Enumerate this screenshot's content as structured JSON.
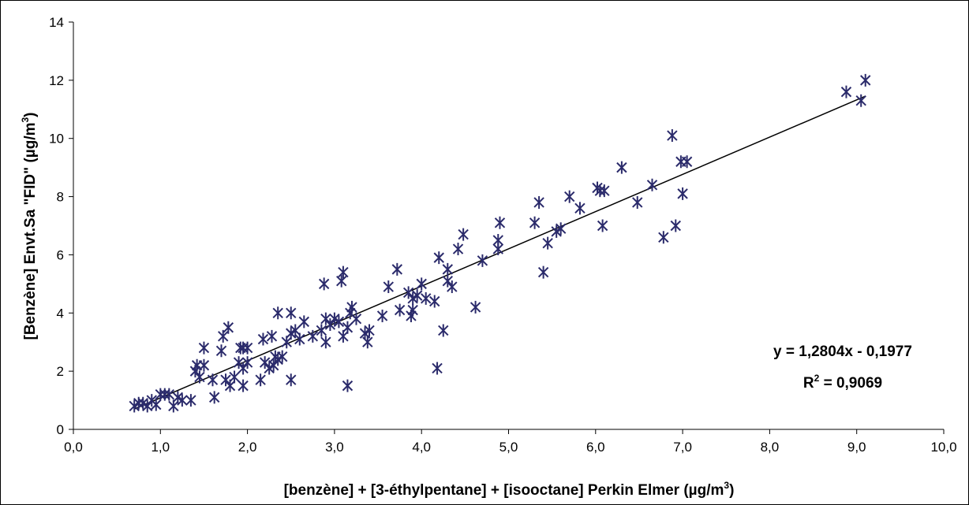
{
  "chart_data": {
    "type": "scatter",
    "x_label": {
      "text": "[benzène] + [3-éthylpentane] + [isooctane]  Perkin Elmer  (µg/m",
      "sup": "3",
      "end": ")"
    },
    "y_label": {
      "text": "[Benzène] Envt.Sa  \"FID\" (µg/m",
      "sup": "3",
      "end": ")"
    },
    "color": "#2b2b6b",
    "x": [
      0.7,
      0.75,
      0.8,
      0.85,
      0.9,
      0.95,
      1.0,
      1.05,
      1.1,
      1.15,
      1.2,
      1.25,
      1.35,
      1.4,
      1.42,
      1.45,
      1.5,
      1.5,
      1.6,
      1.62,
      1.7,
      1.72,
      1.75,
      1.78,
      1.8,
      1.85,
      1.9,
      1.92,
      1.95,
      1.95,
      1.95,
      2.0,
      2.0,
      2.15,
      2.18,
      2.2,
      2.25,
      2.28,
      2.3,
      2.32,
      2.35,
      2.35,
      2.4,
      2.45,
      2.5,
      2.5,
      2.5,
      2.55,
      2.6,
      2.65,
      2.75,
      2.85,
      2.88,
      2.9,
      2.9,
      2.95,
      3.0,
      3.05,
      3.08,
      3.1,
      3.1,
      3.15,
      3.15,
      3.18,
      3.2,
      3.25,
      3.35,
      3.38,
      3.4,
      3.55,
      3.62,
      3.72,
      3.75,
      3.85,
      3.88,
      3.9,
      3.9,
      3.95,
      4.0,
      4.05,
      4.15,
      4.18,
      4.2,
      4.25,
      4.3,
      4.3,
      4.35,
      4.42,
      4.48,
      4.62,
      4.7,
      4.88,
      4.88,
      4.9,
      5.3,
      5.35,
      5.4,
      5.45,
      5.55,
      5.6,
      5.7,
      5.82,
      6.02,
      6.05,
      6.08,
      6.1,
      6.3,
      6.48,
      6.65,
      6.78,
      6.88,
      6.92,
      6.98,
      7.0,
      7.05,
      8.88,
      9.05,
      9.1
    ],
    "values": [
      0.8,
      0.9,
      0.9,
      0.8,
      1.0,
      0.85,
      1.2,
      1.2,
      1.2,
      0.8,
      1.1,
      1.0,
      1.0,
      2.0,
      2.2,
      1.8,
      2.2,
      2.8,
      1.7,
      1.1,
      2.7,
      3.2,
      1.7,
      3.5,
      1.5,
      1.8,
      2.3,
      2.8,
      2.8,
      1.5,
      2.1,
      2.8,
      2.3,
      1.7,
      3.1,
      2.3,
      2.1,
      3.2,
      2.2,
      2.5,
      4.0,
      2.4,
      2.5,
      3.0,
      3.3,
      4.0,
      1.7,
      3.4,
      3.1,
      3.7,
      3.2,
      3.4,
      5.0,
      3.0,
      3.8,
      3.6,
      3.8,
      3.7,
      5.1,
      5.4,
      3.2,
      3.5,
      1.5,
      4.0,
      4.2,
      3.8,
      3.3,
      3.0,
      3.4,
      3.9,
      4.9,
      5.5,
      4.1,
      4.7,
      3.9,
      4.5,
      4.1,
      4.6,
      5.0,
      4.5,
      4.4,
      2.1,
      5.9,
      3.4,
      5.1,
      5.5,
      4.9,
      6.2,
      6.7,
      4.2,
      5.8,
      6.5,
      6.2,
      7.1,
      7.1,
      7.8,
      5.4,
      6.4,
      6.8,
      6.9,
      8.0,
      7.6,
      8.3,
      8.2,
      7.0,
      8.2,
      9.0,
      7.8,
      8.4,
      6.6,
      10.1,
      7.0,
      9.2,
      8.1,
      9.2,
      11.6,
      11.3,
      12.0
    ],
    "xlim": [
      0,
      10
    ],
    "xticks": [
      {
        "value": 0,
        "label": "0,0"
      },
      {
        "value": 1,
        "label": "1,0"
      },
      {
        "value": 2,
        "label": "2,0"
      },
      {
        "value": 3,
        "label": "3,0"
      },
      {
        "value": 4,
        "label": "4,0"
      },
      {
        "value": 5,
        "label": "5,0"
      },
      {
        "value": 6,
        "label": "6,0"
      },
      {
        "value": 7,
        "label": "7,0"
      },
      {
        "value": 8,
        "label": "8,0"
      },
      {
        "value": 9,
        "label": "9,0"
      },
      {
        "value": 10,
        "label": "10,0"
      }
    ],
    "ylim": [
      0,
      14
    ],
    "yticks": [
      0,
      2,
      4,
      6,
      8,
      10,
      12,
      14
    ],
    "trendline": {
      "slope": 1.2804,
      "intercept": -0.1977,
      "equation": "y = 1,2804x - 0,1977",
      "r2_label": {
        "text": "R",
        "sup": "2",
        "end": " = 0,9069"
      }
    }
  }
}
